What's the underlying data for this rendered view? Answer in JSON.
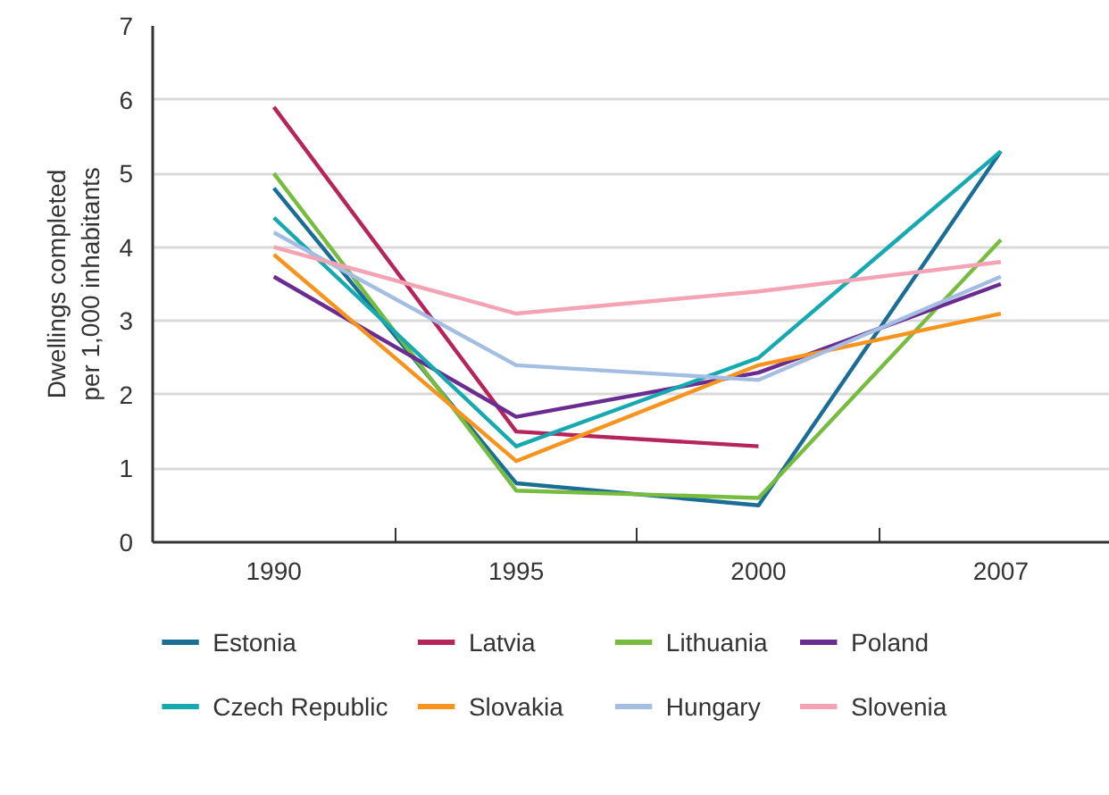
{
  "chart_data": {
    "type": "line",
    "ylabel": "Dwellings completed\nper 1,000 inhabitants",
    "categories": [
      "1990",
      "1995",
      "2000",
      "2007"
    ],
    "ylim": [
      0,
      7
    ],
    "yticks": [
      0,
      1,
      2,
      3,
      4,
      5,
      6,
      7
    ],
    "grid": "y",
    "legend": "bottom",
    "series": [
      {
        "name": "Estonia",
        "color": "#1a6e96",
        "values": [
          4.8,
          0.8,
          0.5,
          5.3
        ]
      },
      {
        "name": "Latvia",
        "color": "#b5245a",
        "values": [
          5.9,
          1.5,
          1.3,
          null
        ]
      },
      {
        "name": "Lithuania",
        "color": "#77bc3f",
        "values": [
          5.0,
          0.7,
          0.6,
          4.1
        ]
      },
      {
        "name": "Poland",
        "color": "#6a2c91",
        "values": [
          3.6,
          1.7,
          2.3,
          3.5
        ]
      },
      {
        "name": "Czech Republic",
        "color": "#17a9b0",
        "values": [
          4.4,
          1.3,
          2.5,
          5.3
        ]
      },
      {
        "name": "Slovakia",
        "color": "#f7941d",
        "values": [
          3.9,
          1.1,
          2.4,
          3.1
        ]
      },
      {
        "name": "Hungary",
        "color": "#a3bde3",
        "values": [
          4.2,
          2.4,
          2.2,
          3.6
        ]
      },
      {
        "name": "Slovenia",
        "color": "#f4a3b4",
        "values": [
          4.0,
          3.1,
          3.4,
          3.8
        ]
      }
    ]
  }
}
